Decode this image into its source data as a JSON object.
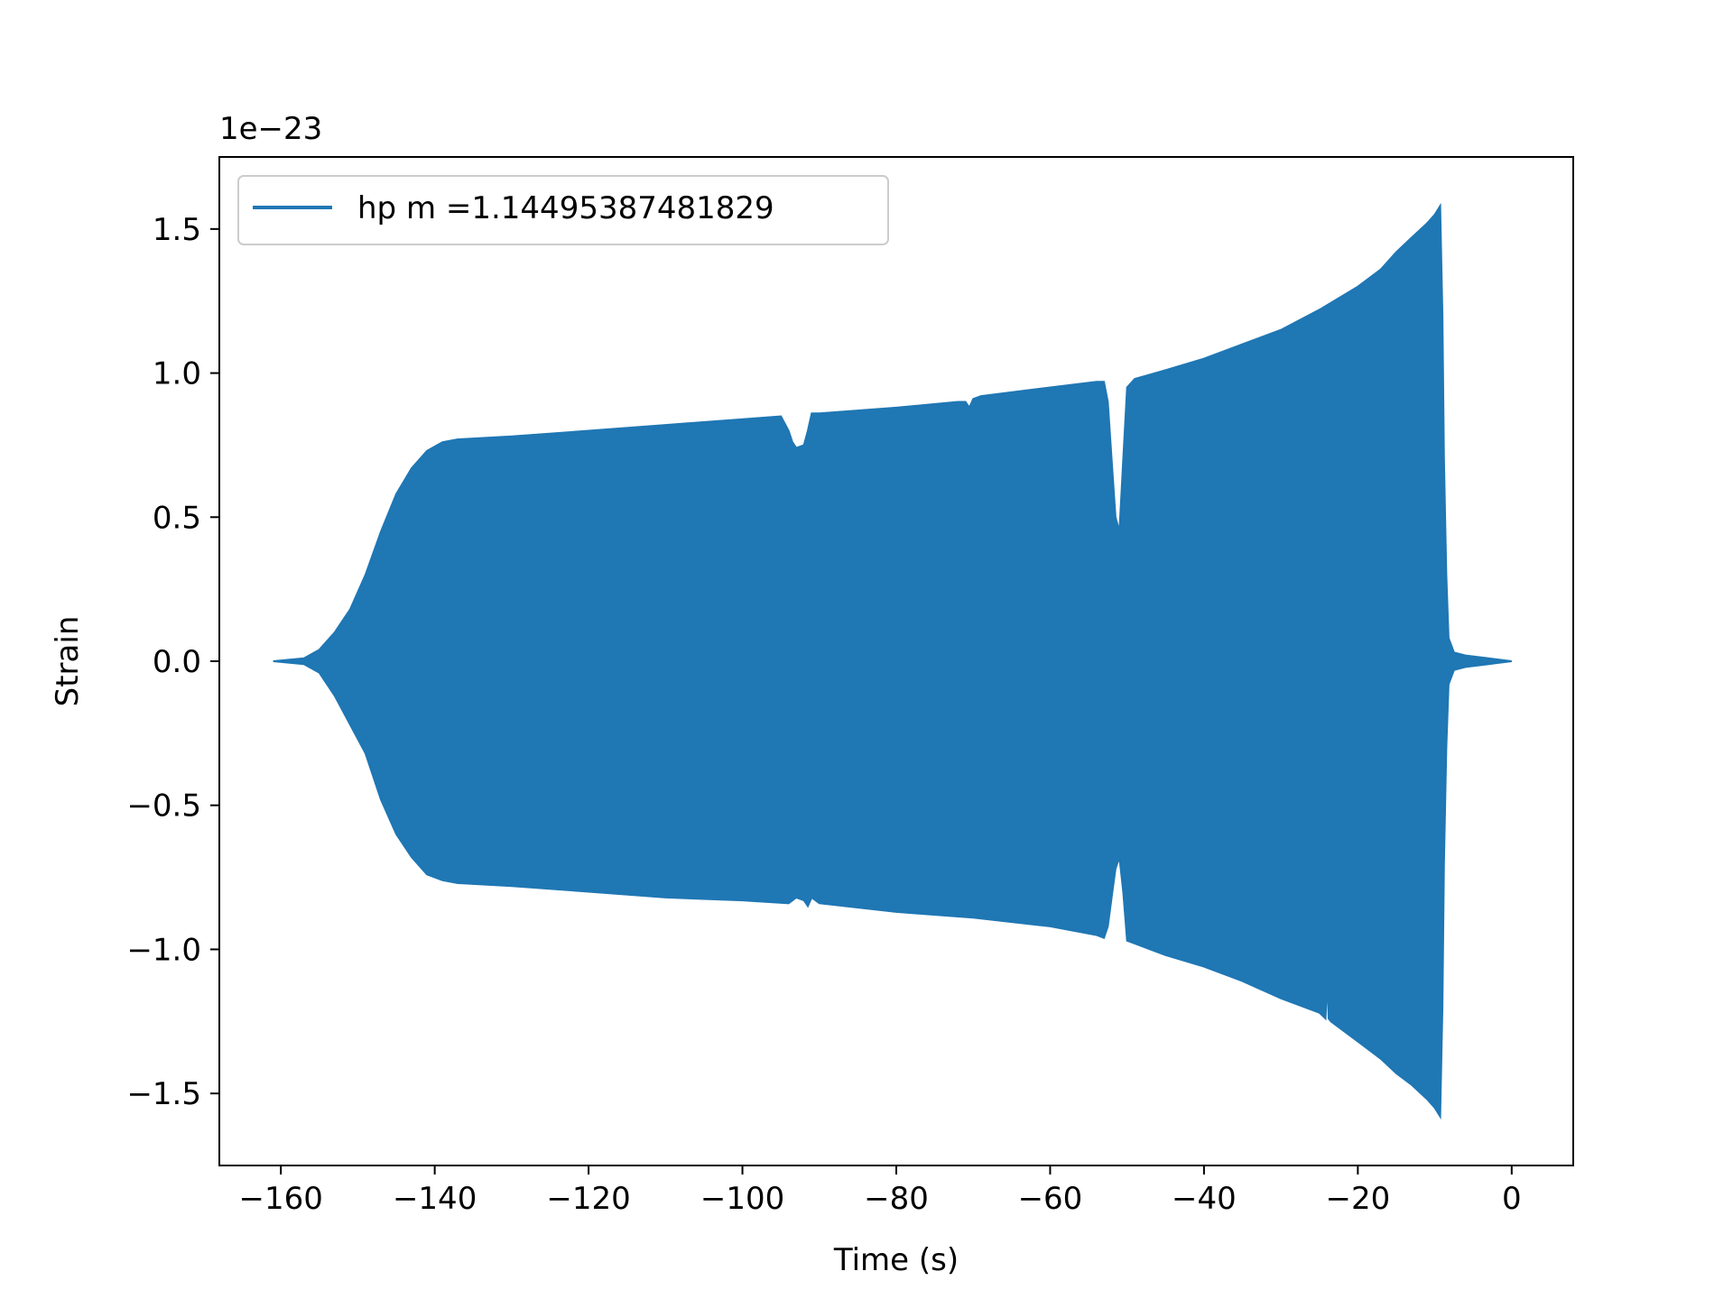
{
  "chart_data": {
    "type": "area",
    "title": "",
    "xlabel": "Time (s)",
    "ylabel": "Strain",
    "y_offset_label": "1e−23",
    "xlim": [
      -168,
      8
    ],
    "ylim": [
      -1.75,
      1.75
    ],
    "x_ticks": [
      -160,
      -140,
      -120,
      -100,
      -80,
      -60,
      -40,
      -20,
      0
    ],
    "x_tick_labels": [
      "−160",
      "−140",
      "−120",
      "−100",
      "−80",
      "−60",
      "−40",
      "−20",
      "0"
    ],
    "y_ticks": [
      -1.5,
      -1.0,
      -0.5,
      0.0,
      0.5,
      1.0,
      1.5
    ],
    "y_tick_labels": [
      "−1.5",
      "−1.0",
      "−0.5",
      "0.0",
      "0.5",
      "1.0",
      "1.5"
    ],
    "grid": false,
    "legend": {
      "placement": "upper-left",
      "entries": [
        "hp m =1.14495387481829"
      ]
    },
    "series": [
      {
        "name": "hp m =1.14495387481829",
        "color": "#1f77b4",
        "upper_envelope": {
          "x": [
            -161,
            -157,
            -155,
            -153,
            -151,
            -149,
            -147,
            -145,
            -143,
            -141,
            -139,
            -137,
            -130,
            -120,
            -110,
            -100,
            -95,
            -94,
            -93.5,
            -93,
            -92,
            -91.5,
            -91,
            -90,
            -80,
            -72,
            -71,
            -70.5,
            -70,
            -69,
            -60,
            -54,
            -53,
            -52.5,
            -52,
            -51.5,
            -51,
            -50.5,
            -50,
            -49,
            -45,
            -40,
            -35,
            -30,
            -25,
            -20,
            -17,
            -15,
            -13,
            -11,
            -10,
            -9.3,
            -9,
            -8.8,
            -8.5,
            -8.2,
            -7.5,
            -6,
            -3,
            0
          ],
          "y": [
            0.0,
            0.01,
            0.04,
            0.1,
            0.18,
            0.3,
            0.45,
            0.58,
            0.67,
            0.73,
            0.76,
            0.77,
            0.78,
            0.8,
            0.82,
            0.84,
            0.85,
            0.8,
            0.76,
            0.74,
            0.75,
            0.8,
            0.86,
            0.86,
            0.88,
            0.9,
            0.9,
            0.88,
            0.91,
            0.92,
            0.95,
            0.97,
            0.97,
            0.9,
            0.7,
            0.5,
            0.45,
            0.7,
            0.95,
            0.98,
            1.01,
            1.05,
            1.1,
            1.15,
            1.22,
            1.3,
            1.36,
            1.42,
            1.47,
            1.52,
            1.55,
            1.58,
            1.2,
            0.7,
            0.3,
            0.08,
            0.03,
            0.02,
            0.01,
            0.0
          ]
        },
        "lower_envelope": {
          "x": [
            -161,
            -157,
            -155,
            -153,
            -151,
            -149,
            -147,
            -145,
            -143,
            -141,
            -139,
            -137,
            -130,
            -120,
            -110,
            -100,
            -94,
            -93,
            -92,
            -91.5,
            -91,
            -90,
            -80,
            -70,
            -60,
            -54,
            -53,
            -52.5,
            -52,
            -51.5,
            -51,
            -50.5,
            -50,
            -49,
            -45,
            -40,
            -35,
            -30,
            -25,
            -24.2,
            -24,
            -23.8,
            -23.5,
            -20,
            -17,
            -15,
            -13,
            -11,
            -10,
            -9.3,
            -9,
            -8.8,
            -8.5,
            -8.2,
            -7.5,
            -6,
            -3,
            0
          ],
          "y": [
            0.0,
            -0.01,
            -0.04,
            -0.12,
            -0.22,
            -0.32,
            -0.48,
            -0.6,
            -0.68,
            -0.74,
            -0.76,
            -0.77,
            -0.78,
            -0.8,
            -0.82,
            -0.83,
            -0.84,
            -0.82,
            -0.83,
            -0.85,
            -0.82,
            -0.84,
            -0.87,
            -0.89,
            -0.92,
            -0.95,
            -0.96,
            -0.92,
            -0.82,
            -0.72,
            -0.68,
            -0.8,
            -0.97,
            -0.98,
            -1.02,
            -1.06,
            -1.11,
            -1.17,
            -1.22,
            -1.24,
            -1.1,
            -1.24,
            -1.25,
            -1.32,
            -1.38,
            -1.43,
            -1.47,
            -1.52,
            -1.55,
            -1.58,
            -1.2,
            -0.7,
            -0.3,
            -0.08,
            -0.03,
            -0.02,
            -0.01,
            0.0
          ]
        }
      }
    ]
  }
}
